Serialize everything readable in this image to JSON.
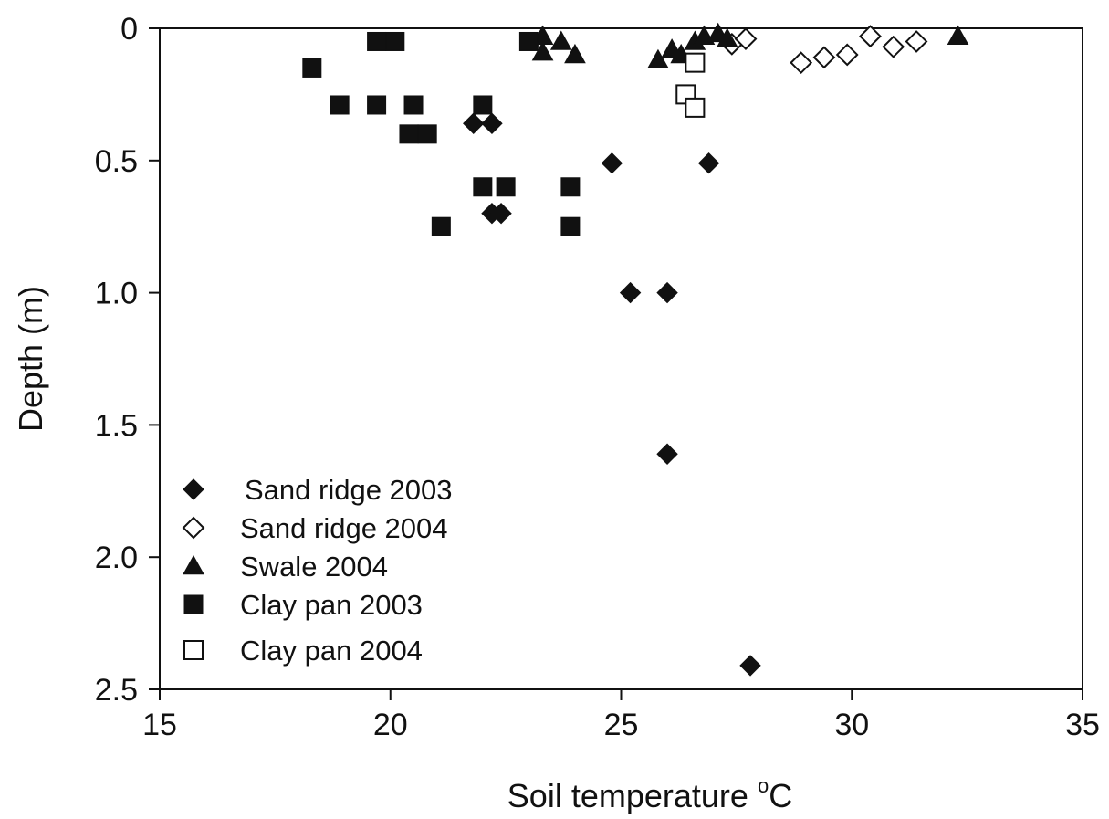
{
  "chart_data": {
    "type": "scatter",
    "title": "",
    "xlabel": "Soil temperature",
    "xlabel_unit": "oC",
    "ylabel": "Depth (m)",
    "xlim": [
      15,
      35
    ],
    "ylim": [
      0,
      2.5
    ],
    "y_inverted": true,
    "x_ticks": [
      15,
      20,
      25,
      30,
      35
    ],
    "x_tick_labels": [
      "15",
      "20",
      "25",
      "30",
      "35"
    ],
    "y_ticks": [
      0,
      0.5,
      1.0,
      1.5,
      2.0,
      2.5
    ],
    "y_tick_labels": [
      "0",
      "0.5",
      "1.0",
      "1.5",
      "2.0",
      "2.5"
    ],
    "grid": false,
    "legend_position": "bottom-left",
    "colors": {
      "marker": "#111111",
      "axis": "#111111",
      "background": "#ffffff"
    },
    "series": [
      {
        "name": "Sand ridge 2003",
        "marker": "diamond-filled",
        "points": [
          [
            21.8,
            0.36
          ],
          [
            22.2,
            0.36
          ],
          [
            24.8,
            0.51
          ],
          [
            26.9,
            0.51
          ],
          [
            22.2,
            0.7
          ],
          [
            22.4,
            0.7
          ],
          [
            25.2,
            1.0
          ],
          [
            26.0,
            1.0
          ],
          [
            26.0,
            1.61
          ],
          [
            27.8,
            2.41
          ]
        ]
      },
      {
        "name": "Sand ridge 2004",
        "marker": "diamond-open",
        "points": [
          [
            27.4,
            0.06
          ],
          [
            27.7,
            0.04
          ],
          [
            28.9,
            0.13
          ],
          [
            29.4,
            0.11
          ],
          [
            29.9,
            0.1
          ],
          [
            30.4,
            0.03
          ],
          [
            30.9,
            0.07
          ],
          [
            31.4,
            0.05
          ]
        ]
      },
      {
        "name": "Swale 2004",
        "marker": "triangle-filled",
        "points": [
          [
            23.3,
            0.03
          ],
          [
            23.3,
            0.09
          ],
          [
            23.7,
            0.05
          ],
          [
            24.0,
            0.1
          ],
          [
            25.8,
            0.12
          ],
          [
            26.1,
            0.08
          ],
          [
            26.3,
            0.1
          ],
          [
            26.6,
            0.05
          ],
          [
            26.8,
            0.03
          ],
          [
            27.1,
            0.02
          ],
          [
            27.3,
            0.04
          ],
          [
            32.3,
            0.03
          ]
        ]
      },
      {
        "name": "Clay pan 2003",
        "marker": "square-filled",
        "points": [
          [
            18.3,
            0.15
          ],
          [
            18.9,
            0.29
          ],
          [
            19.7,
            0.05
          ],
          [
            20.1,
            0.05
          ],
          [
            19.7,
            0.29
          ],
          [
            20.5,
            0.29
          ],
          [
            20.4,
            0.4
          ],
          [
            20.8,
            0.4
          ],
          [
            21.1,
            0.75
          ],
          [
            22.0,
            0.29
          ],
          [
            22.0,
            0.6
          ],
          [
            22.5,
            0.6
          ],
          [
            23.0,
            0.05
          ],
          [
            23.9,
            0.6
          ],
          [
            23.9,
            0.75
          ]
        ]
      },
      {
        "name": "Clay pan 2004",
        "marker": "square-open",
        "points": [
          [
            26.6,
            0.13
          ],
          [
            26.4,
            0.25
          ],
          [
            26.6,
            0.3
          ]
        ]
      }
    ]
  }
}
